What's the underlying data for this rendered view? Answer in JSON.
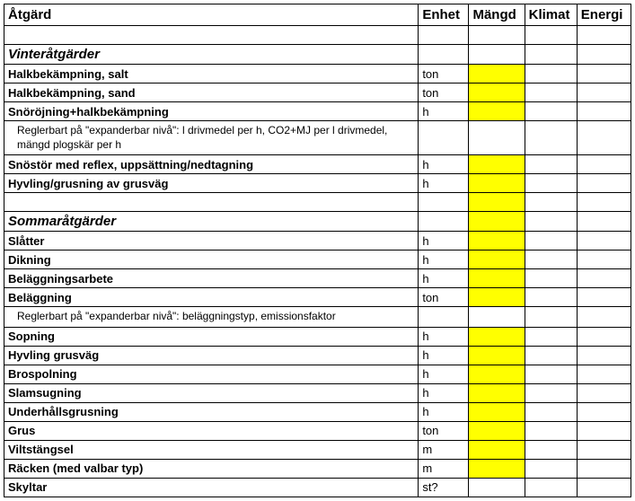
{
  "headers": {
    "action": "Åtgärd",
    "unit": "Enhet",
    "qty": "Mängd",
    "climate": "Klimat",
    "energy": "Energi"
  },
  "rows": [
    {
      "type": "blank"
    },
    {
      "type": "section",
      "label": "Vinteråtgärder"
    },
    {
      "type": "item",
      "label": "Halkbekämpning, salt",
      "unit": "ton",
      "yellow": true
    },
    {
      "type": "item",
      "label": "Halkbekämpning, sand",
      "unit": "ton",
      "yellow": true
    },
    {
      "type": "item",
      "label": "Snöröjning+halkbekämpning",
      "unit": "h",
      "yellow": true
    },
    {
      "type": "note",
      "label": "Reglerbart på \"expanderbar nivå\": l drivmedel per h, CO2+MJ per l drivmedel, mängd plogskär per h"
    },
    {
      "type": "item",
      "label": "Snöstör med reflex, uppsättning/nedtagning",
      "unit": "h",
      "yellow": true
    },
    {
      "type": "item",
      "label": "Hyvling/grusning av grusväg",
      "unit": "h",
      "yellow": true
    },
    {
      "type": "blank",
      "yellow": true
    },
    {
      "type": "section",
      "label": "Sommaråtgärder",
      "yellow": true
    },
    {
      "type": "item",
      "label": "Slåtter",
      "unit": "h",
      "yellow": true
    },
    {
      "type": "item",
      "label": "Dikning",
      "unit": "h",
      "yellow": true
    },
    {
      "type": "item",
      "label": "Beläggningsarbete",
      "unit": "h",
      "yellow": true
    },
    {
      "type": "item",
      "label": "Beläggning",
      "unit": "ton",
      "yellow": true
    },
    {
      "type": "note",
      "label": "Reglerbart på \"expanderbar nivå\": beläggningstyp, emissionsfaktor"
    },
    {
      "type": "item",
      "label": "Sopning",
      "unit": "h",
      "yellow": true
    },
    {
      "type": "item",
      "label": "Hyvling grusväg",
      "unit": "h",
      "yellow": true
    },
    {
      "type": "item",
      "label": "Brospolning",
      "unit": "h",
      "yellow": true
    },
    {
      "type": "item",
      "label": "Slamsugning",
      "unit": "h",
      "yellow": true
    },
    {
      "type": "item",
      "label": "Underhållsgrusning",
      "unit": "h",
      "yellow": true
    },
    {
      "type": "item",
      "label": "Grus",
      "unit": "ton",
      "yellow": true
    },
    {
      "type": "item",
      "label": "Viltstängsel",
      "unit": "m",
      "yellow": true
    },
    {
      "type": "item",
      "label": "Räcken (med valbar typ)",
      "unit": "m",
      "yellow": true
    },
    {
      "type": "item",
      "label": "Skyltar",
      "unit": "st?"
    }
  ]
}
